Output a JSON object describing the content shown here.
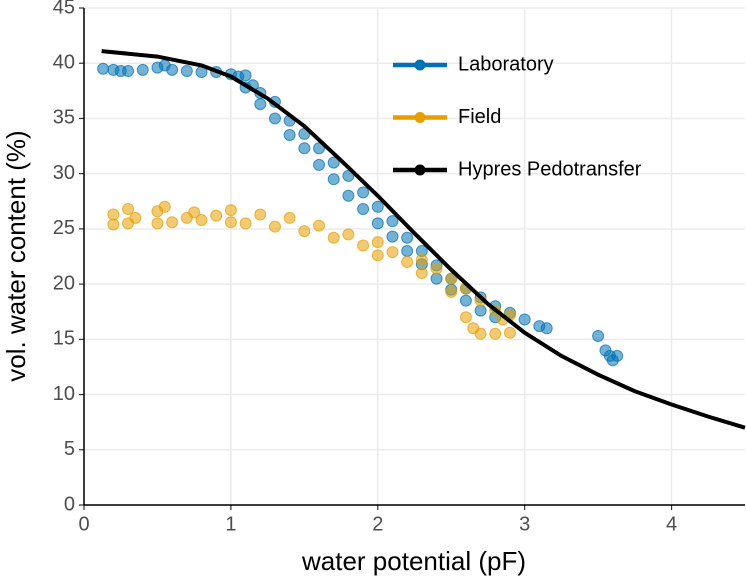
{
  "chart_data": {
    "type": "scatter",
    "x_label": "water potential (pF)",
    "y_label": "vol. water content (%)",
    "xlim": [
      0,
      4.5
    ],
    "ylim": [
      0,
      45
    ],
    "xticks": [
      0,
      1,
      2,
      3,
      4
    ],
    "yticks": [
      0,
      5,
      10,
      15,
      20,
      25,
      30,
      35,
      40,
      45
    ],
    "grid": true,
    "legend": "top",
    "series": [
      {
        "name": "Laboratory",
        "color": "#0072B2",
        "mode": "points",
        "x": [
          0.13,
          0.2,
          0.25,
          0.3,
          0.4,
          0.5,
          0.55,
          0.6,
          0.7,
          0.8,
          0.9,
          1.0,
          1.05,
          1.1,
          1.1,
          1.15,
          1.2,
          1.2,
          1.3,
          1.3,
          1.4,
          1.4,
          1.5,
          1.5,
          1.6,
          1.6,
          1.7,
          1.7,
          1.8,
          1.8,
          1.9,
          1.9,
          2.0,
          2.0,
          2.1,
          2.1,
          2.2,
          2.2,
          2.3,
          2.3,
          2.4,
          2.4,
          2.5,
          2.5,
          2.6,
          2.6,
          2.7,
          2.7,
          2.8,
          2.8,
          2.9,
          3.0,
          3.1,
          3.15,
          3.5,
          3.55,
          3.58,
          3.6,
          3.63
        ],
        "values": [
          39.5,
          39.4,
          39.3,
          39.3,
          39.4,
          39.6,
          39.8,
          39.4,
          39.3,
          39.2,
          39.2,
          39.0,
          38.8,
          38.9,
          37.8,
          38.0,
          37.3,
          36.3,
          36.5,
          35.0,
          34.8,
          33.5,
          33.6,
          32.3,
          32.3,
          30.8,
          31.0,
          29.5,
          29.8,
          28.0,
          28.3,
          26.8,
          27.0,
          25.5,
          25.7,
          24.3,
          24.2,
          23.0,
          23.0,
          21.8,
          21.7,
          20.5,
          20.5,
          19.5,
          19.6,
          18.5,
          18.8,
          17.6,
          18.0,
          17.0,
          17.4,
          16.8,
          16.2,
          16.0,
          15.3,
          14.0,
          13.5,
          13.1,
          13.5
        ]
      },
      {
        "name": "Field",
        "color": "#E69F00",
        "mode": "points",
        "x": [
          0.2,
          0.2,
          0.3,
          0.3,
          0.35,
          0.5,
          0.5,
          0.55,
          0.6,
          0.7,
          0.75,
          0.8,
          0.9,
          1.0,
          1.0,
          1.1,
          1.2,
          1.3,
          1.4,
          1.5,
          1.6,
          1.7,
          1.8,
          1.9,
          2.0,
          2.0,
          2.1,
          2.2,
          2.3,
          2.3,
          2.4,
          2.5,
          2.5,
          2.6,
          2.6,
          2.65,
          2.7,
          2.7,
          2.8,
          2.8,
          2.85,
          2.9,
          2.9
        ],
        "values": [
          25.4,
          26.3,
          26.8,
          25.5,
          26.0,
          25.5,
          26.6,
          27.0,
          25.6,
          26.0,
          26.5,
          25.8,
          26.2,
          25.6,
          26.7,
          25.5,
          26.3,
          25.2,
          26.0,
          24.8,
          25.3,
          24.2,
          24.5,
          23.5,
          23.8,
          22.6,
          22.9,
          22.0,
          22.2,
          21.0,
          21.4,
          20.5,
          19.3,
          19.6,
          17.0,
          16.0,
          18.5,
          15.5,
          17.6,
          15.5,
          16.8,
          15.6,
          17.2
        ]
      },
      {
        "name": "Hypres Pedotransfer",
        "color": "#000000",
        "mode": "line",
        "x": [
          0.12,
          0.5,
          0.8,
          1.0,
          1.25,
          1.5,
          1.75,
          2.0,
          2.25,
          2.5,
          2.75,
          3.0,
          3.25,
          3.5,
          3.75,
          4.0,
          4.25,
          4.5
        ],
        "values": [
          41.1,
          40.6,
          39.8,
          38.8,
          36.8,
          34.3,
          31.2,
          28.0,
          24.6,
          21.3,
          18.2,
          15.6,
          13.5,
          11.8,
          10.3,
          9.1,
          8.0,
          7.0
        ]
      }
    ]
  }
}
